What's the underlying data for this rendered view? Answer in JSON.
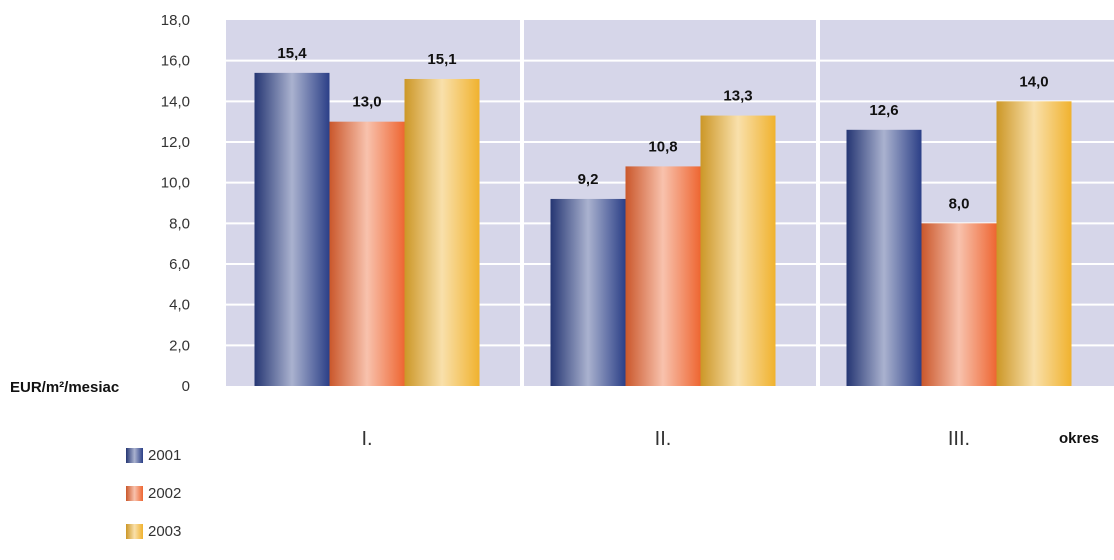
{
  "chart_data": {
    "type": "bar",
    "categories": [
      "I.",
      "II.",
      "III."
    ],
    "series": [
      {
        "name": "2001",
        "values": [
          15.4,
          9.2,
          12.6
        ],
        "labels": [
          "15,4",
          "9,2",
          "12,6"
        ],
        "color": "#2b3f87"
      },
      {
        "name": "2002",
        "values": [
          13.0,
          10.8,
          8.0
        ],
        "labels": [
          "13,0",
          "10,8",
          "8,0"
        ],
        "color": "#ee6632"
      },
      {
        "name": "2003",
        "values": [
          15.1,
          13.3,
          14.0
        ],
        "labels": [
          "15,1",
          "13,3",
          "14,0"
        ],
        "color": "#f0b22e"
      }
    ],
    "ylim": [
      0,
      18
    ],
    "yticks": [
      0,
      2,
      4,
      6,
      8,
      10,
      12,
      14,
      16,
      18
    ],
    "ytick_labels": [
      "0",
      "2,0",
      "4,0",
      "6,0",
      "8,0",
      "10,0",
      "12,0",
      "14,0",
      "16,0",
      "18,0"
    ],
    "ylabel": "EUR/m²/mesiac",
    "xlabel": "okres",
    "legend_position": "bottom-left",
    "grid": true,
    "plot_background": "#d6d6e9"
  }
}
